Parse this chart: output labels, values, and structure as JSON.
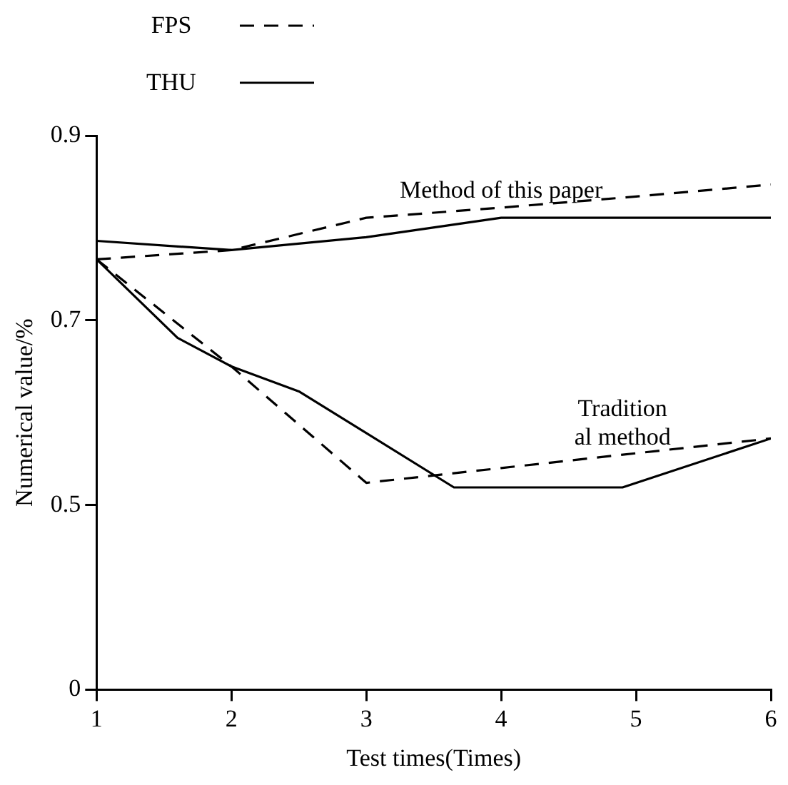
{
  "chart_data": {
    "type": "line",
    "xlabel": "Test times(Times)",
    "ylabel": "Numerical value/%",
    "xlim": [
      1,
      6
    ],
    "xticks": [
      1,
      2,
      3,
      4,
      5,
      6
    ],
    "ylim": [
      0.3,
      0.9
    ],
    "yticks": [
      {
        "value": 0.3,
        "label": "0"
      },
      0.5,
      0.7,
      0.9
    ],
    "series": [
      {
        "name": "FPS",
        "color": "#000000",
        "line_style": "dashed",
        "x": [
          1,
          2,
          3,
          4,
          5,
          6
        ],
        "values": [
          0.766,
          0.776,
          0.811,
          0.822,
          0.834,
          0.847
        ]
      },
      {
        "name": "THU",
        "color": "#000000",
        "line_style": "solid",
        "x": [
          1,
          2,
          3,
          4,
          5,
          6
        ],
        "values": [
          0.786,
          0.776,
          0.79,
          0.811,
          0.811,
          0.811
        ]
      },
      {
        "color": "#000000",
        "line_style": "dashed",
        "x": [
          1,
          2,
          3,
          4,
          5,
          6
        ],
        "values": [
          0.766,
          0.65,
          0.524,
          0.54,
          0.556,
          0.572
        ]
      },
      {
        "color": "#000000",
        "line_style": "solid",
        "x": [
          1,
          1.6,
          2,
          2.5,
          3.65,
          4.9,
          6
        ],
        "values": [
          0.766,
          0.681,
          0.65,
          0.623,
          0.519,
          0.519,
          0.572
        ]
      }
    ],
    "annotations": [
      "Method of this paper",
      "Tradition\nal method"
    ],
    "legend": "top left",
    "grid": false,
    "marker": "none"
  }
}
